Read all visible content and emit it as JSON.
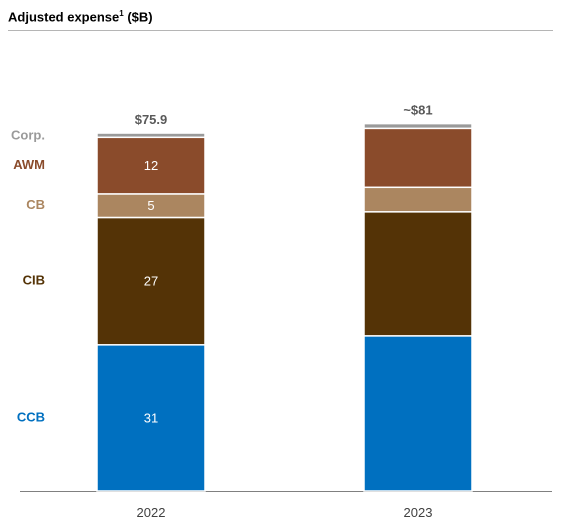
{
  "chart_data": {
    "type": "bar",
    "stacked": true,
    "title": "Adjusted expense",
    "title_superscript": "1",
    "title_unit": "($B)",
    "categories": [
      "2022",
      "2023"
    ],
    "totals_labels": [
      "$75.9",
      "~$81"
    ],
    "series": [
      {
        "name": "CCB",
        "color": "#0070c0",
        "values": [
          31,
          32.9
        ],
        "value_labels": [
          "31",
          ""
        ]
      },
      {
        "name": "CIB",
        "color": "#543306",
        "values": [
          27,
          26.3
        ],
        "value_labels": [
          "27",
          ""
        ]
      },
      {
        "name": "CB",
        "color": "#ab8660",
        "values": [
          5,
          5.2
        ],
        "value_labels": [
          "5",
          ""
        ]
      },
      {
        "name": "AWM",
        "color": "#8a4b2b",
        "values": [
          12,
          12.5
        ],
        "value_labels": [
          "12",
          ""
        ]
      },
      {
        "name": "Corp.",
        "color": "#9a9a9a",
        "values": [
          0.9,
          1.0
        ],
        "value_labels": [
          "",
          ""
        ]
      }
    ],
    "ylim": [
      0,
      85
    ],
    "xlabel": "",
    "ylabel": "",
    "grid": false,
    "legend_placement": "left"
  }
}
